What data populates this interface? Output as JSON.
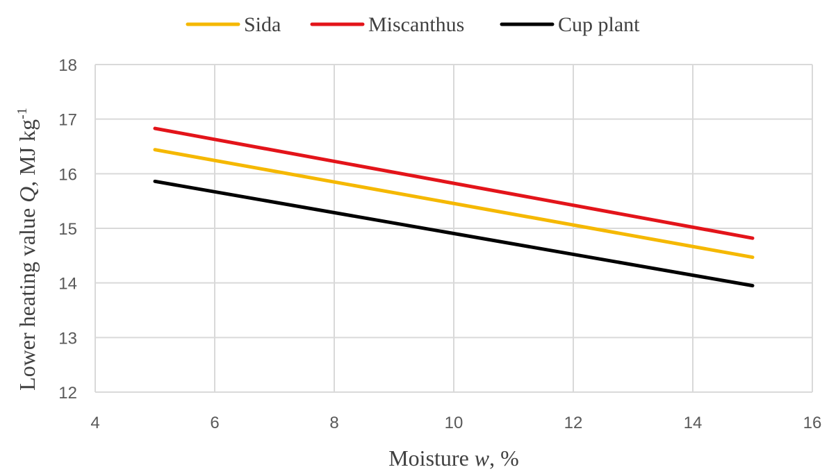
{
  "chart_data": {
    "type": "line",
    "xlabel": {
      "prefix": "Moisture ",
      "var": "w",
      "suffix": ", %"
    },
    "ylabel": {
      "prefix": "Lower heating value ",
      "var": "Q",
      "suffix": ", MJ kg",
      "sup": "-1"
    },
    "xlim": [
      4,
      16
    ],
    "ylim": [
      12,
      18
    ],
    "xticks": [
      4,
      6,
      8,
      10,
      12,
      14,
      16
    ],
    "yticks": [
      12,
      13,
      14,
      15,
      16,
      17,
      18
    ],
    "grid": true,
    "legend_position": "top",
    "series": [
      {
        "name": "Sida",
        "color": "#f5b800",
        "x": [
          5,
          15
        ],
        "y": [
          16.44,
          14.47
        ]
      },
      {
        "name": "Miscanthus",
        "color": "#e3141a",
        "x": [
          5,
          15
        ],
        "y": [
          16.83,
          14.82
        ]
      },
      {
        "name": "Cup plant",
        "color": "#000000",
        "x": [
          5,
          15
        ],
        "y": [
          15.86,
          13.95
        ]
      }
    ]
  }
}
